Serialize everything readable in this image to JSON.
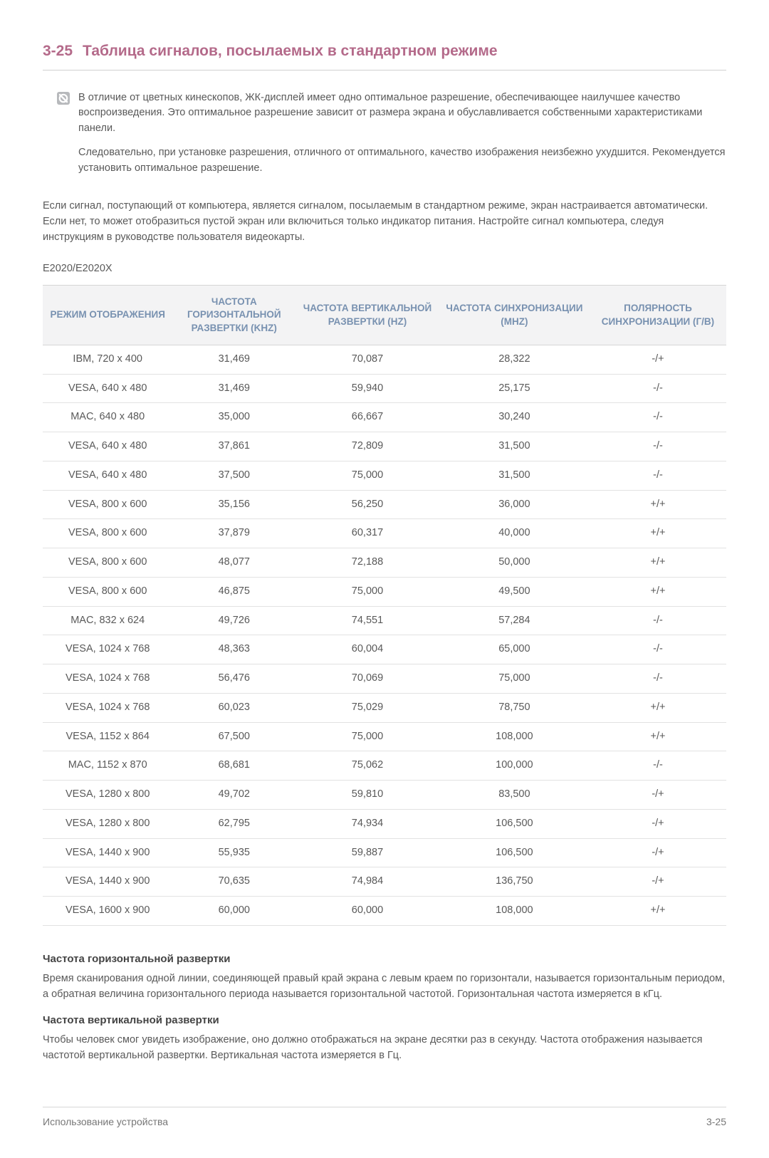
{
  "colors": {
    "accent": "#b46a8a",
    "header_text": "#7891b0",
    "header_bg": "#f3f3f4",
    "body_text": "#595959",
    "border": "#d5d5d5",
    "row_border": "#e2e2e2",
    "icon_bg": "#b7b9bc",
    "icon_fg": "#ffffff"
  },
  "title": {
    "num": "3-25",
    "text": "Таблица сигналов, посылаемых в стандартном режиме"
  },
  "note": {
    "p1": "В отличие от цветных кинескопов, ЖК-дисплей имеет одно оптимальное разрешение, обеспечивающее наилучшее качество воспроизведения. Это оптимальное разрешение зависит от размера экрана и обуславливается собственными характеристиками панели.",
    "p2": "Следовательно, при установке разрешения, отличного от оптимального, качество изображения неизбежно ухудшится. Рекомендуется установить оптимальное разрешение."
  },
  "body_para": "Если сигнал, поступающий от компьютера, является сигналом, посылаемым в стандартном режиме, экран настраивается автоматически. Если нет, то может отобразиться пустой экран или включиться только индикатор питания. Настройте сигнал компьютера, следуя инструкциям в руководстве пользователя видеокарты.",
  "model": "E2020/E2020X",
  "table": {
    "type": "table",
    "columns": [
      "РЕЖИМ ОТОБРАЖЕНИЯ",
      "ЧАСТОТА ГОРИЗОНТАЛЬНОЙ РАЗВЕРТКИ (KHZ)",
      "ЧАСТОТА ВЕРТИКАЛЬНОЙ РАЗВЕРТКИ (HZ)",
      "ЧАСТОТА СИНХРОНИЗАЦИИ (MHZ)",
      "ПОЛЯРНОСТЬ СИНХРОНИЗАЦИИ (Г/В)"
    ],
    "col_widths_pct": [
      19,
      18,
      21,
      22,
      20
    ],
    "header_fontsize": 13.5,
    "cell_fontsize": 14.5,
    "rows": [
      [
        "IBM, 720 x 400",
        "31,469",
        "70,087",
        "28,322",
        "-/+"
      ],
      [
        "VESA, 640 x 480",
        "31,469",
        "59,940",
        "25,175",
        "-/-"
      ],
      [
        "MAC, 640 x 480",
        "35,000",
        "66,667",
        "30,240",
        "-/-"
      ],
      [
        "VESA, 640 x 480",
        "37,861",
        "72,809",
        "31,500",
        "-/-"
      ],
      [
        "VESA, 640 x 480",
        "37,500",
        "75,000",
        "31,500",
        "-/-"
      ],
      [
        "VESA, 800 x 600",
        "35,156",
        "56,250",
        "36,000",
        "+/+"
      ],
      [
        "VESA, 800 x 600",
        "37,879",
        "60,317",
        "40,000",
        "+/+"
      ],
      [
        "VESA, 800 x 600",
        "48,077",
        "72,188",
        "50,000",
        "+/+"
      ],
      [
        "VESA, 800 x 600",
        "46,875",
        "75,000",
        "49,500",
        "+/+"
      ],
      [
        "MAC, 832 x 624",
        "49,726",
        "74,551",
        "57,284",
        "-/-"
      ],
      [
        "VESA, 1024 x 768",
        "48,363",
        "60,004",
        "65,000",
        "-/-"
      ],
      [
        "VESA, 1024 x 768",
        "56,476",
        "70,069",
        "75,000",
        "-/-"
      ],
      [
        "VESA, 1024 x 768",
        "60,023",
        "75,029",
        "78,750",
        "+/+"
      ],
      [
        "VESA, 1152 x 864",
        "67,500",
        "75,000",
        "108,000",
        "+/+"
      ],
      [
        "MAC, 1152 x 870",
        "68,681",
        "75,062",
        "100,000",
        "-/-"
      ],
      [
        "VESA, 1280 x 800",
        "49,702",
        "59,810",
        "83,500",
        "-/+"
      ],
      [
        "VESA, 1280 x 800",
        "62,795",
        "74,934",
        "106,500",
        "-/+"
      ],
      [
        "VESA, 1440 x 900",
        "55,935",
        "59,887",
        "106,500",
        "-/+"
      ],
      [
        "VESA, 1440 x 900",
        "70,635",
        "74,984",
        "136,750",
        "-/+"
      ],
      [
        "VESA, 1600 x 900",
        "60,000",
        "60,000",
        "108,000",
        "+/+"
      ]
    ]
  },
  "defs": {
    "h1": "Частота горизонтальной развертки",
    "p1": "Время сканирования одной линии, соединяющей правый край экрана с левым краем по горизонтали, называется горизонтальным периодом, а обратная величина горизонтального периода называется горизонтальной частотой. Горизонтальная частота измеряется в кГц.",
    "h2": "Частота вертикальной развертки",
    "p2": "Чтобы человек смог увидеть изображение, оно должно отображаться на экране десятки раз в секунду. Частота отображения называется частотой вертикальной развертки. Вертикальная частота измеряется в Гц."
  },
  "footer": {
    "left": "Использование устройства",
    "right": "3-25"
  }
}
